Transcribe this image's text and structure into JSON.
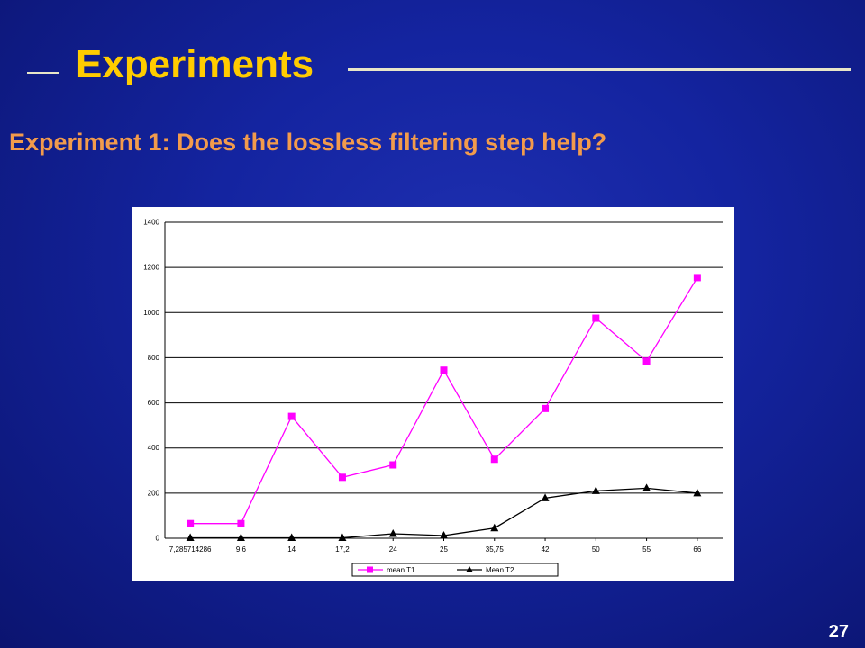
{
  "slide": {
    "title": "Experiments",
    "subtitle": "Experiment 1: Does the lossless filtering step help?",
    "page_number": "27"
  },
  "colors": {
    "title": "#ffcc00",
    "subtitle": "#f29b4c",
    "series_t1": "#ff00ff",
    "series_t2": "#000000"
  },
  "chart_data": {
    "type": "line",
    "title": "",
    "xlabel": "",
    "ylabel": "",
    "categories": [
      "7,285714286",
      "9,6",
      "14",
      "17,2",
      "24",
      "25",
      "35,75",
      "42",
      "50",
      "55",
      "66"
    ],
    "ylim": [
      0,
      1400
    ],
    "yticks": [
      0,
      200,
      400,
      600,
      800,
      1000,
      1200,
      1400
    ],
    "grid": "horizontal",
    "legend_position": "bottom",
    "series": [
      {
        "name": "mean T1",
        "marker": "square",
        "values": [
          65,
          65,
          540,
          270,
          325,
          745,
          350,
          575,
          975,
          785,
          1155
        ]
      },
      {
        "name": "Mean T2",
        "marker": "triangle",
        "values": [
          2,
          2,
          2,
          2,
          20,
          12,
          45,
          178,
          210,
          222,
          200
        ]
      }
    ]
  }
}
